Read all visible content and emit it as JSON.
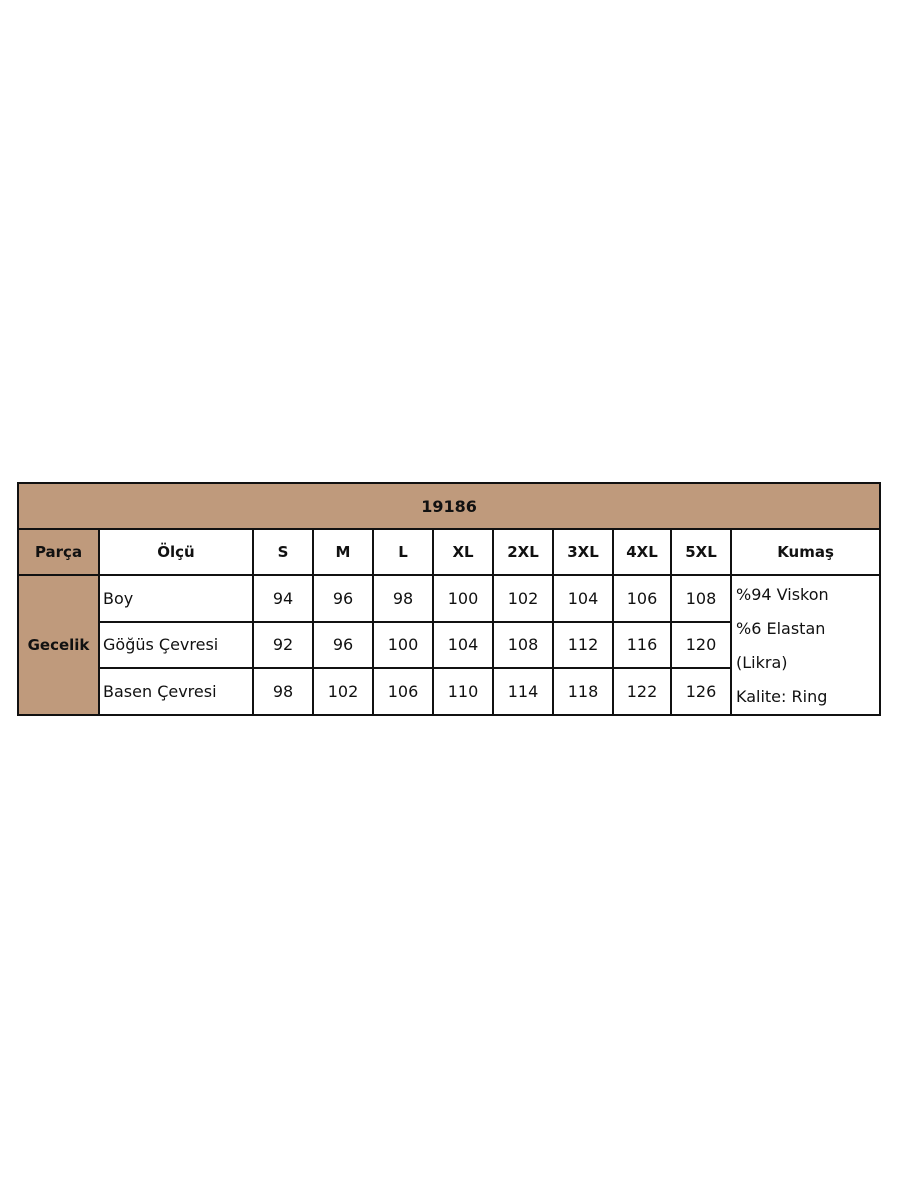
{
  "title": "19186",
  "colors": {
    "header_bg": "#bf9a7c",
    "border": "#111111"
  },
  "headers": {
    "part": "Parça",
    "measure": "Ölçü",
    "sizes": [
      "S",
      "M",
      "L",
      "XL",
      "2XL",
      "3XL",
      "4XL",
      "5XL"
    ],
    "fabric": "Kumaş"
  },
  "part_name": "Gecelik",
  "rows": [
    {
      "label": "Boy",
      "values": [
        "94",
        "96",
        "98",
        "100",
        "102",
        "104",
        "106",
        "108"
      ]
    },
    {
      "label": "Göğüs Çevresi",
      "values": [
        "92",
        "96",
        "100",
        "104",
        "108",
        "112",
        "116",
        "120"
      ]
    },
    {
      "label": "Basen Çevresi",
      "values": [
        "98",
        "102",
        "106",
        "110",
        "114",
        "118",
        "122",
        "126"
      ]
    }
  ],
  "fabric_lines": [
    "%94 Viskon",
    "%6 Elastan",
    "(Likra)",
    "Kalite: Ring"
  ]
}
